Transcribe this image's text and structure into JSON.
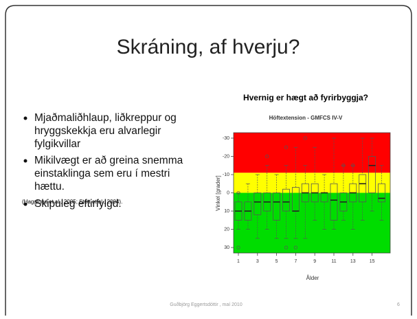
{
  "slide": {
    "title": "Skráning, af hverju?",
    "bullets": [
      "Mjaðmaliðhlaup, liðkreppur og hryggskekkja eru alvarlegir fylgikvillar",
      "Mikilvægt er að greina snemma einstaklinga sem eru í mestri hættu.",
      "Skipuleg  eftirfylgd."
    ],
    "reference": "(Hagglund et al., 2005; Stott et al., 2004).",
    "chart_heading": "Hvernig er hægt að fyrirbyggja?",
    "footer": "Guðbjörg Eggertsdóttir , maí 2010",
    "page_number": "6"
  },
  "chart_data": {
    "type": "box",
    "title": "Höftextension - GMFCS IV-V",
    "x_label": "Ålder",
    "y_label": "Vinkel [grader]",
    "categories": [
      "1",
      null,
      "3",
      null,
      "5",
      null,
      "7",
      null,
      "9",
      null,
      "11",
      null,
      "13",
      null,
      "15",
      null
    ],
    "ylim": [
      -33,
      33
    ],
    "y_reversed": true,
    "yticks": [
      -30,
      -20,
      -10,
      0,
      10,
      20,
      30
    ],
    "bands": [
      {
        "from": -33,
        "to": -11,
        "color": "#ff0000"
      },
      {
        "from": -11,
        "to": 0,
        "color": "#ffff00"
      },
      {
        "from": 0,
        "to": 33,
        "color": "#00dd00"
      }
    ],
    "box_color": "#555555",
    "boxes": [
      {
        "low": 0,
        "q1": 5,
        "median": 10,
        "q3": 15,
        "high": 20
      },
      {
        "low": -5,
        "q1": 5,
        "median": 10,
        "q3": 15,
        "high": 20
      },
      {
        "low": -10,
        "q1": 0,
        "median": 5,
        "q3": 12,
        "high": 25
      },
      {
        "low": -15,
        "q1": 0,
        "median": 5,
        "q3": 10,
        "high": 20
      },
      {
        "low": -10,
        "q1": 0,
        "median": 5,
        "q3": 15,
        "high": 25
      },
      {
        "low": -15,
        "q1": -2,
        "median": 5,
        "q3": 10,
        "high": 25
      },
      {
        "low": -25,
        "q1": -3,
        "median": 10,
        "q3": 10,
        "high": 25
      },
      {
        "low": -15,
        "q1": -5,
        "median": 0,
        "q3": 5,
        "high": 25
      },
      {
        "low": -25,
        "q1": -5,
        "median": 0,
        "q3": 5,
        "high": 15
      },
      {
        "low": -10,
        "q1": 0,
        "median": 0,
        "q3": 5,
        "high": 20
      },
      {
        "low": -30,
        "q1": -5,
        "median": 4,
        "q3": 15,
        "high": 20
      },
      {
        "low": -15,
        "q1": 0,
        "median": 5,
        "q3": 10,
        "high": 15
      },
      {
        "low": -15,
        "q1": -5,
        "median": 0,
        "q3": 5,
        "high": 20
      },
      {
        "low": -30,
        "q1": -10,
        "median": -5,
        "q3": 5,
        "high": 15
      },
      {
        "low": -30,
        "q1": -20,
        "median": -15,
        "q3": 0,
        "high": 10
      },
      {
        "low": -15,
        "q1": -5,
        "median": 3,
        "q3": 5,
        "high": 15
      }
    ],
    "outliers": [
      [
        0,
        30
      ],
      [],
      [],
      [
        -20
      ],
      [],
      [
        -25,
        30
      ],
      [
        30
      ],
      [
        -30
      ],
      [],
      [],
      [],
      [
        -15
      ],
      [
        -15
      ],
      [],
      [],
      []
    ]
  }
}
